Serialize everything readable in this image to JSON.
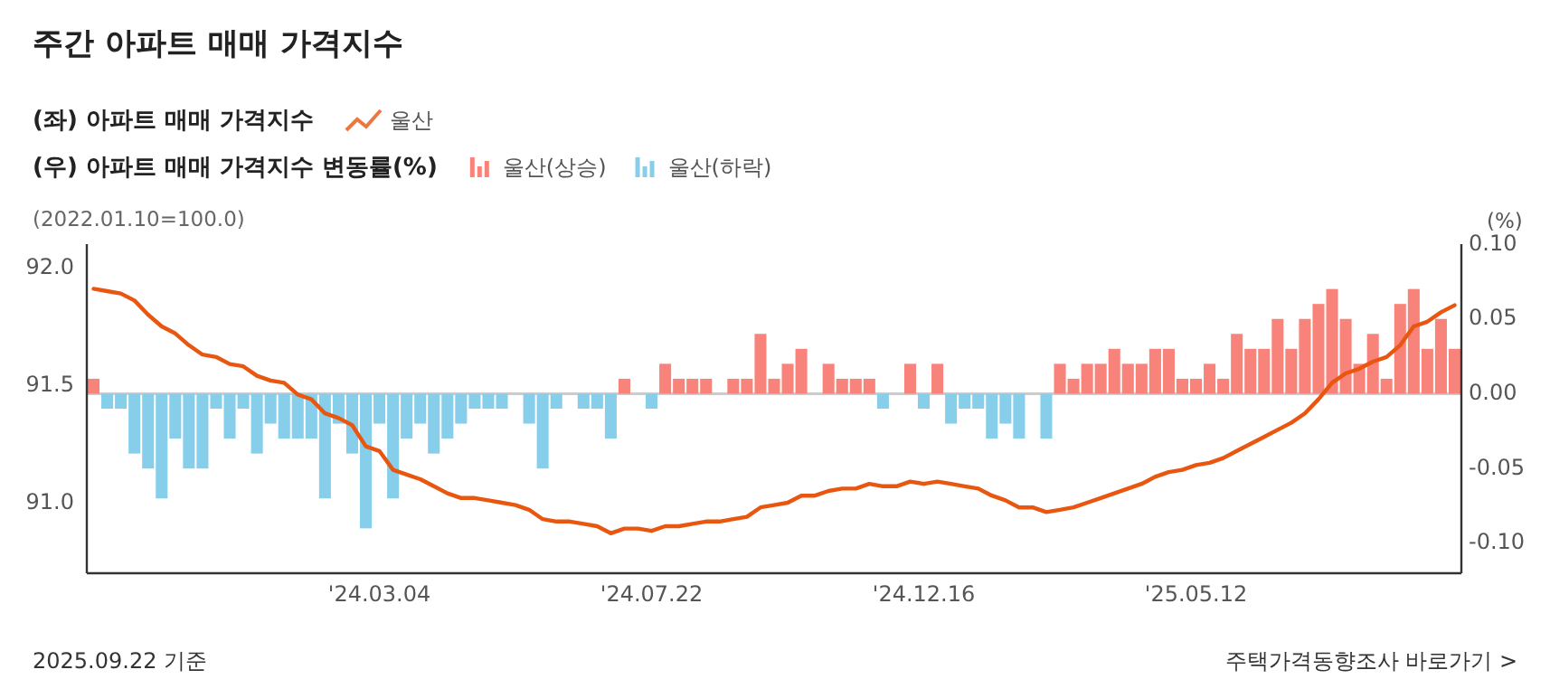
{
  "chart_data": {
    "type": "bar",
    "title": "주간 아파트 매매 가격지수",
    "ylabel": "(2022.01.10=100.0)",
    "y2label": "(%)",
    "annotations": [
      "(좌) 아파트 매매 가격지수",
      "(우) 아파트 매매 가격지수 변동률(%)",
      "2025.09.22 기준",
      "주택가격동향조사 바로가기 >"
    ],
    "categories": [
      null,
      null,
      null,
      null,
      null,
      null,
      null,
      null,
      null,
      null,
      null,
      null,
      null,
      null,
      null,
      null,
      null,
      null,
      null,
      null,
      null,
      "'24.03.04",
      null,
      null,
      null,
      null,
      null,
      null,
      null,
      null,
      null,
      null,
      null,
      null,
      null,
      null,
      null,
      null,
      null,
      null,
      null,
      "'24.07.22",
      null,
      null,
      null,
      null,
      null,
      null,
      null,
      null,
      null,
      null,
      null,
      null,
      null,
      null,
      null,
      null,
      null,
      null,
      null,
      "'24.12.16",
      null,
      null,
      null,
      null,
      null,
      null,
      null,
      null,
      null,
      null,
      null,
      null,
      null,
      null,
      null,
      null,
      null,
      null,
      null,
      "'25.05.12",
      null,
      null,
      null,
      null,
      null,
      null,
      null,
      null,
      null,
      null,
      null,
      null,
      null,
      null,
      null,
      null,
      null,
      null,
      null
    ],
    "series": [
      {
        "name": "울산(상승)",
        "axis": "y2",
        "color": "#f8837a",
        "values": [
          0.01,
          null,
          null,
          null,
          null,
          null,
          null,
          null,
          null,
          null,
          null,
          null,
          null,
          null,
          null,
          null,
          null,
          null,
          null,
          null,
          null,
          null,
          null,
          null,
          null,
          null,
          null,
          null,
          null,
          null,
          null,
          0,
          null,
          null,
          null,
          0,
          null,
          null,
          null,
          0.01,
          0,
          null,
          0.02,
          0.01,
          0.01,
          0.01,
          0,
          0.01,
          0.01,
          0.04,
          0.01,
          0.02,
          0.03,
          0,
          0.02,
          0.01,
          0.01,
          0.01,
          null,
          0,
          0.02,
          null,
          0.02,
          null,
          null,
          null,
          null,
          null,
          null,
          0,
          null,
          0.02,
          0.01,
          0.02,
          0.02,
          0.03,
          0.02,
          0.02,
          0.03,
          0.03,
          0.01,
          0.01,
          0.02,
          0.01,
          0.04,
          0.03,
          0.03,
          0.05,
          0.03,
          0.05,
          0.06,
          0.07,
          0.05,
          0.02,
          0.04,
          0.01,
          0.06,
          0.07,
          0.03,
          0.05,
          0.03
        ]
      },
      {
        "name": "울산(하락)",
        "axis": "y2",
        "color": "#87ceeb",
        "values": [
          null,
          -0.01,
          -0.01,
          -0.04,
          -0.05,
          -0.07,
          -0.03,
          -0.05,
          -0.05,
          -0.01,
          -0.03,
          -0.01,
          -0.04,
          -0.02,
          -0.03,
          -0.03,
          -0.03,
          -0.07,
          -0.02,
          -0.04,
          -0.09,
          -0.02,
          -0.07,
          -0.03,
          -0.02,
          -0.04,
          -0.03,
          -0.02,
          -0.01,
          -0.01,
          -0.01,
          null,
          -0.02,
          -0.05,
          -0.01,
          null,
          -0.01,
          -0.01,
          -0.03,
          null,
          null,
          -0.01,
          null,
          null,
          null,
          null,
          null,
          null,
          null,
          null,
          null,
          null,
          null,
          null,
          null,
          null,
          null,
          null,
          -0.01,
          null,
          null,
          -0.01,
          null,
          -0.02,
          -0.01,
          -0.01,
          -0.03,
          -0.02,
          -0.03,
          null,
          -0.03,
          null,
          null,
          null,
          null,
          null,
          null,
          null,
          null,
          null,
          null,
          null,
          null,
          null,
          null,
          null,
          null,
          null,
          null,
          null,
          null,
          null,
          null,
          null,
          null,
          null,
          null,
          null,
          null,
          null,
          null
        ]
      },
      {
        "name": "울산",
        "type": "line",
        "axis": "y",
        "color": "#e8560f",
        "values": [
          91.91,
          91.9,
          91.89,
          91.86,
          91.8,
          91.75,
          91.72,
          91.67,
          91.63,
          91.62,
          91.59,
          91.58,
          91.54,
          91.52,
          91.51,
          91.46,
          91.44,
          91.38,
          91.36,
          91.33,
          91.24,
          91.22,
          91.14,
          91.12,
          91.1,
          91.07,
          91.04,
          91.02,
          91.02,
          91.01,
          91.0,
          90.99,
          90.97,
          90.93,
          90.92,
          90.92,
          90.91,
          90.9,
          90.87,
          90.89,
          90.89,
          90.88,
          90.9,
          90.9,
          90.91,
          90.92,
          90.92,
          90.93,
          90.94,
          90.98,
          90.99,
          91.0,
          91.03,
          91.03,
          91.05,
          91.06,
          91.06,
          91.08,
          91.07,
          91.07,
          91.09,
          91.08,
          91.09,
          91.08,
          91.07,
          91.06,
          91.03,
          91.01,
          90.98,
          90.98,
          90.96,
          90.97,
          90.98,
          91.0,
          91.02,
          91.04,
          91.06,
          91.08,
          91.11,
          91.13,
          91.14,
          91.16,
          91.17,
          91.19,
          91.22,
          91.25,
          91.28,
          91.31,
          91.34,
          91.38,
          91.44,
          91.51,
          91.55,
          91.57,
          91.6,
          91.62,
          91.67,
          91.75,
          91.77,
          91.81,
          91.84
        ]
      }
    ],
    "ylim": [
      90.7,
      92.1
    ],
    "yticks": [
      {
        "value": 92.0,
        "label": "92.0"
      },
      {
        "value": 91.5,
        "label": "91.5"
      },
      {
        "value": 91.0,
        "label": "91.0"
      }
    ],
    "y2lim": [
      -0.12,
      0.1
    ],
    "y2ticks": [
      {
        "value": 0.1,
        "label": "0.10"
      },
      {
        "value": 0.05,
        "label": "0.05"
      },
      {
        "value": 0,
        "label": "0.00"
      },
      {
        "value": -0.05,
        "label": "-0.05"
      },
      {
        "value": -0.1,
        "label": "-0.10"
      }
    ],
    "ref_lines": [
      {
        "axis": "y2",
        "value": 0,
        "color": "#cccccc"
      }
    ],
    "grid": false,
    "legend": "top left"
  }
}
